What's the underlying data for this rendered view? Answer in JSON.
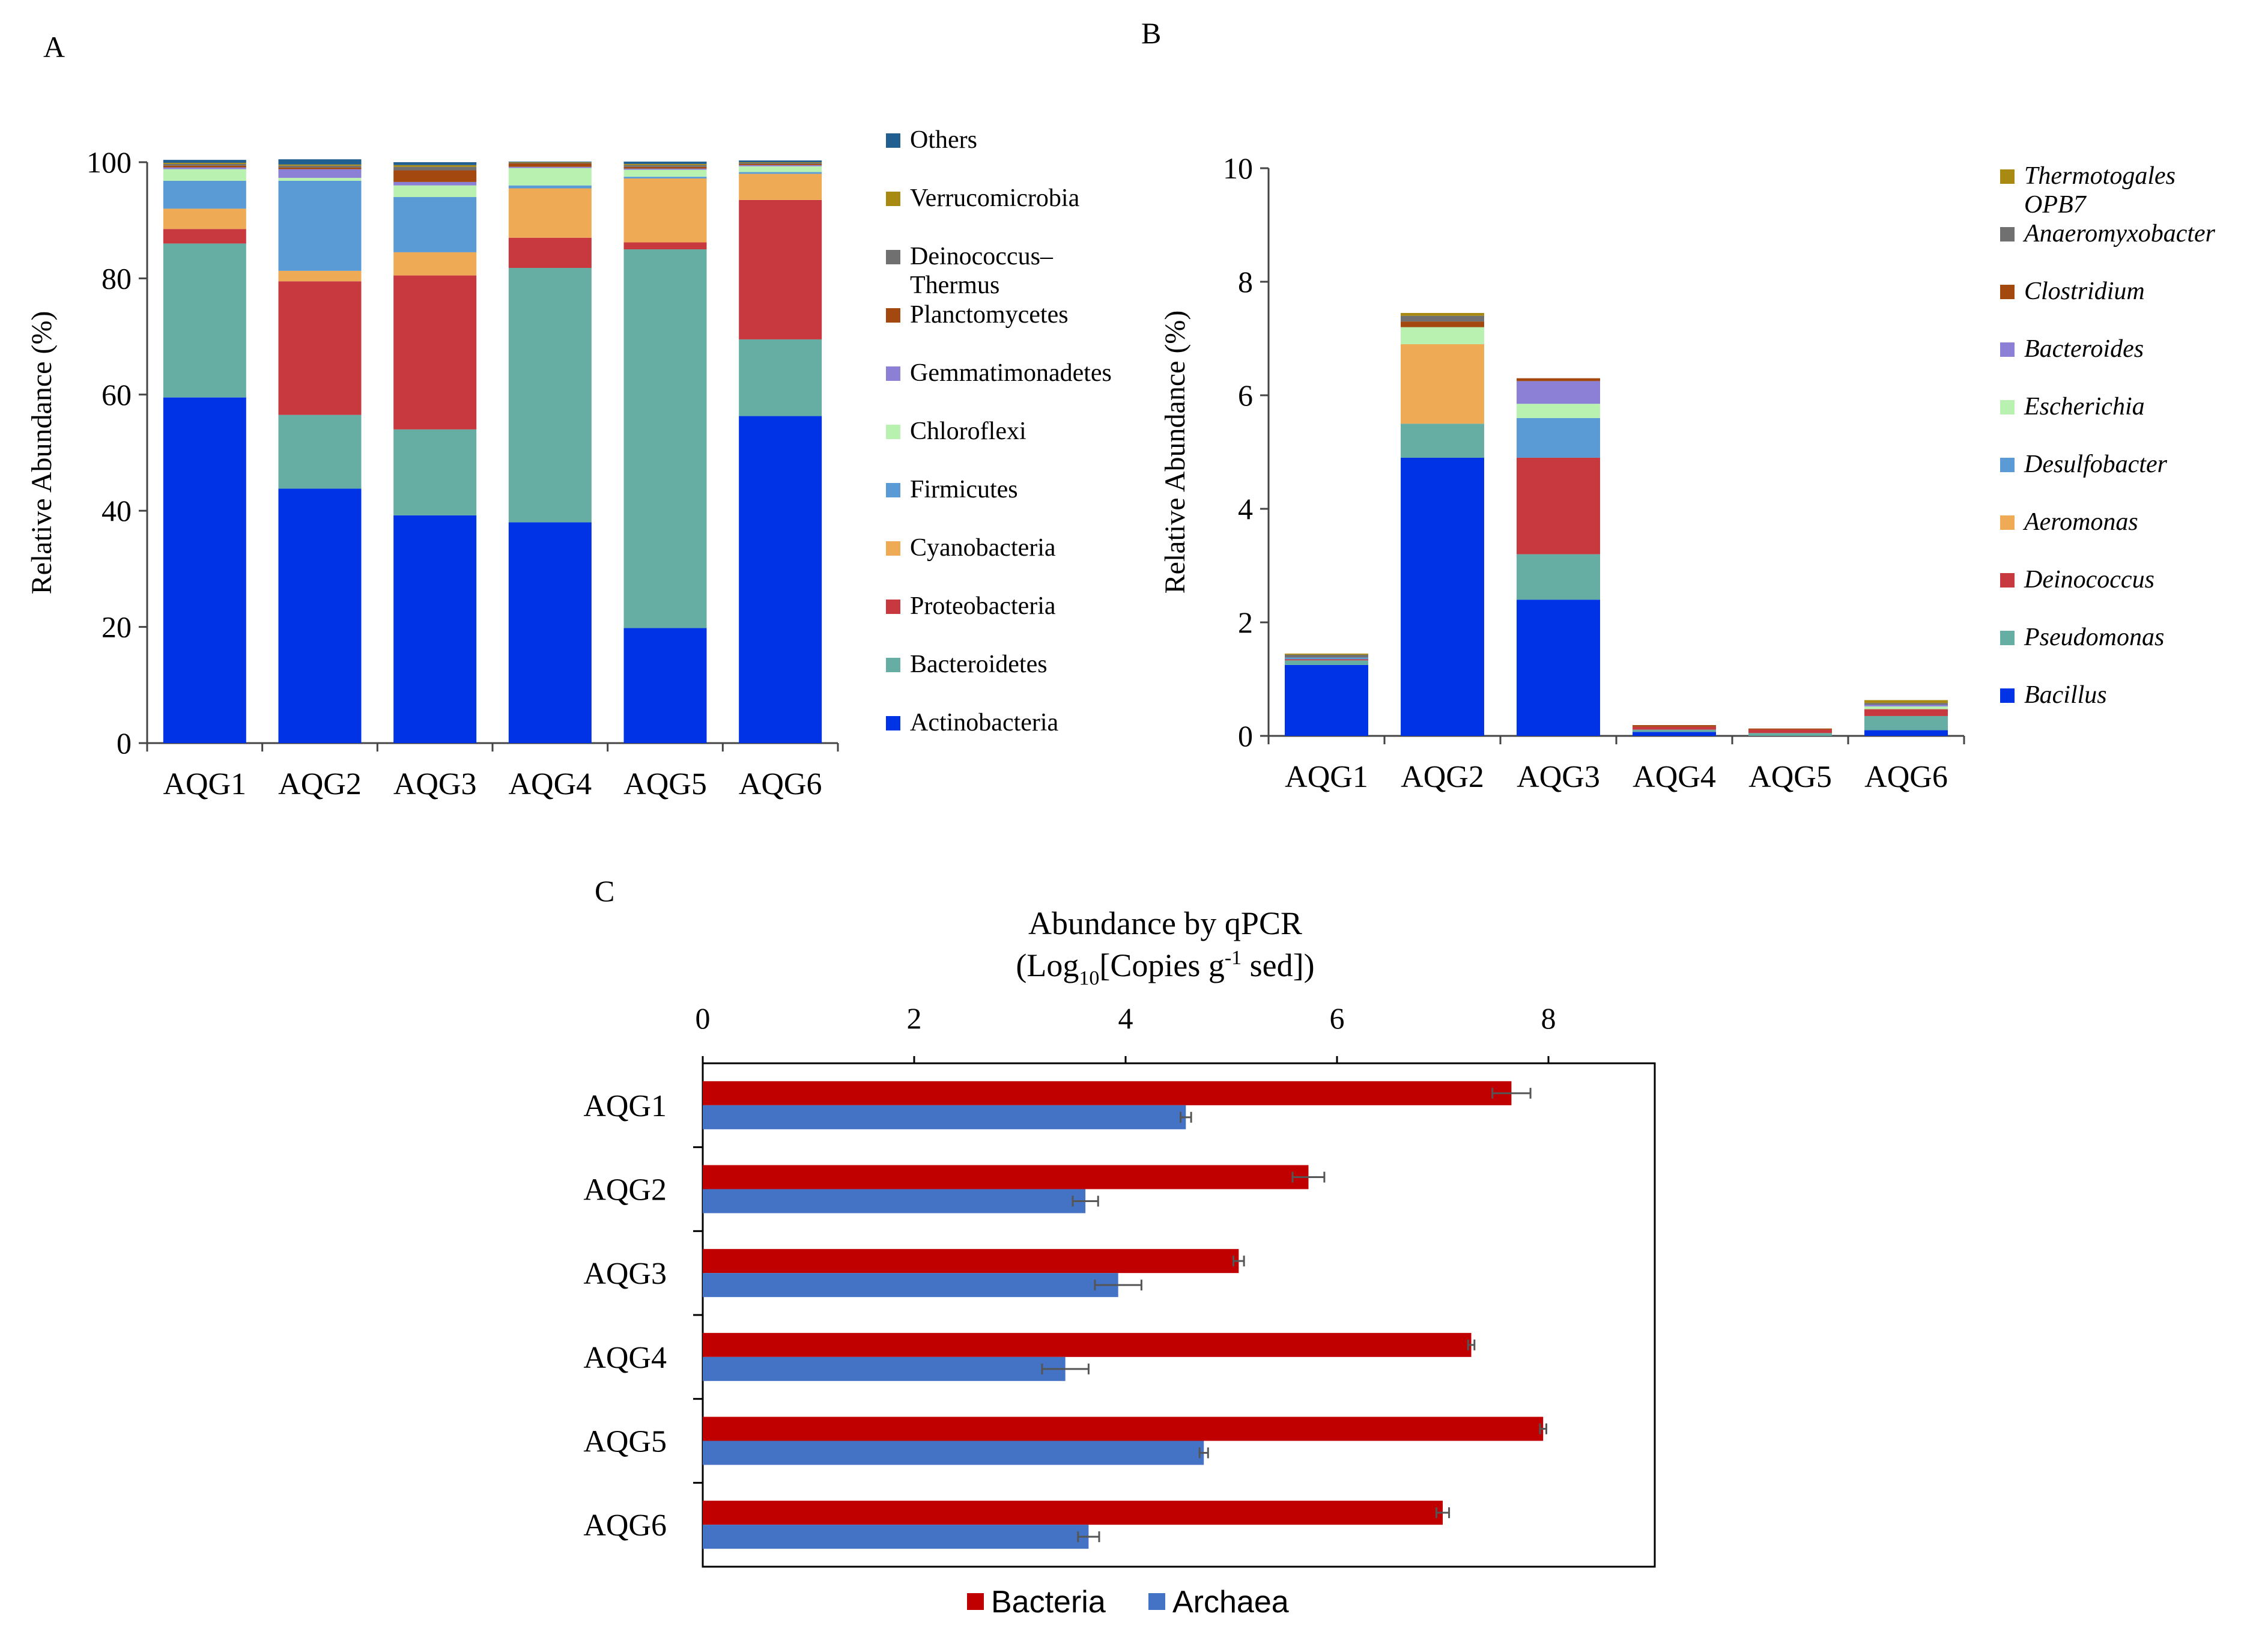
{
  "panels": {
    "A": "A",
    "B": "B",
    "C": "C"
  },
  "chart_data": [
    {
      "id": "A",
      "type": "bar",
      "stacked": true,
      "title": "",
      "ylabel": "Relative Abundance (%)",
      "xlabel": "",
      "ylim": [
        0,
        100
      ],
      "yticks": [
        0,
        20,
        40,
        60,
        80,
        100
      ],
      "categories": [
        "AQG1",
        "AQG2",
        "AQG3",
        "AQG4",
        "AQG5",
        "AQG6"
      ],
      "legend_position": "right",
      "series": [
        {
          "name": "Actinobacteria",
          "color": "#0033E6",
          "values": [
            59.5,
            43.8,
            39.2,
            38.0,
            19.8,
            56.3
          ]
        },
        {
          "name": "Bacteroidetes",
          "color": "#66ADA4",
          "values": [
            26.5,
            12.7,
            14.8,
            43.8,
            65.2,
            13.2
          ]
        },
        {
          "name": "Proteobacteria",
          "color": "#C8393F",
          "values": [
            2.5,
            23.0,
            26.5,
            5.2,
            1.2,
            24.0
          ]
        },
        {
          "name": "Cyanobacteria",
          "color": "#EEAA55",
          "values": [
            3.5,
            1.8,
            4.0,
            8.5,
            11.0,
            4.5
          ]
        },
        {
          "name": "Firmicutes",
          "color": "#5B9BD5",
          "values": [
            4.8,
            15.5,
            9.5,
            0.5,
            0.3,
            0.3
          ]
        },
        {
          "name": "Chloroflexi",
          "color": "#B9F2B0",
          "values": [
            2.0,
            0.5,
            2.0,
            3.0,
            1.2,
            1.0
          ]
        },
        {
          "name": "Gemmatimonadetes",
          "color": "#8B7FD6",
          "values": [
            0.3,
            1.5,
            0.6,
            0.2,
            0.2,
            0.2
          ]
        },
        {
          "name": "Planctomycetes",
          "color": "#A3480F",
          "values": [
            0.3,
            0.3,
            2.0,
            0.6,
            0.3,
            0.2
          ]
        },
        {
          "name": "Deinococcus–\nThermus",
          "color": "#707070",
          "values": [
            0.3,
            0.3,
            0.6,
            0.1,
            0.3,
            0.2
          ]
        },
        {
          "name": "Verrucomicrobia",
          "color": "#A88A12",
          "values": [
            0.2,
            0.2,
            0.3,
            0.1,
            0.2,
            0.1
          ]
        },
        {
          "name": "Others",
          "color": "#225F91",
          "values": [
            0.5,
            0.9,
            0.5,
            0.1,
            0.4,
            0.3
          ]
        }
      ]
    },
    {
      "id": "B",
      "type": "bar",
      "stacked": true,
      "title": "",
      "ylabel": "Relative Abundance (%)",
      "xlabel": "",
      "ylim": [
        0,
        10
      ],
      "yticks": [
        0,
        2,
        4,
        6,
        8,
        10
      ],
      "categories": [
        "AQG1",
        "AQG2",
        "AQG3",
        "AQG4",
        "AQG5",
        "AQG6"
      ],
      "legend_position": "right",
      "series": [
        {
          "name": "Bacillus",
          "color": "#0033E6",
          "values": [
            1.25,
            4.9,
            2.4,
            0.07,
            0.0,
            0.1
          ]
        },
        {
          "name": "Pseudomonas",
          "color": "#66ADA4",
          "values": [
            0.08,
            0.6,
            0.8,
            0.04,
            0.05,
            0.25
          ]
        },
        {
          "name": "Deinococcus",
          "color": "#C8393F",
          "values": [
            0.02,
            0.0,
            1.7,
            0.05,
            0.06,
            0.12
          ]
        },
        {
          "name": "Aeromonas",
          "color": "#EEAA55",
          "values": [
            0.0,
            1.4,
            0.0,
            0.0,
            0.0,
            0.0
          ]
        },
        {
          "name": "Desulfobacter",
          "color": "#5B9BD5",
          "values": [
            0.03,
            0.0,
            0.7,
            0.0,
            0.0,
            0.0
          ]
        },
        {
          "name": "Escherichia",
          "color": "#B9F2B0",
          "values": [
            0.0,
            0.3,
            0.25,
            0.0,
            0.0,
            0.05
          ]
        },
        {
          "name": "Bacteroides",
          "color": "#8B7FD6",
          "values": [
            0.0,
            0.0,
            0.4,
            0.0,
            0.0,
            0.03
          ]
        },
        {
          "name": "Clostridium",
          "color": "#A3480F",
          "values": [
            0.0,
            0.1,
            0.05,
            0.03,
            0.02,
            0.0
          ]
        },
        {
          "name": "Anaeromyxobacter",
          "color": "#707070",
          "values": [
            0.05,
            0.1,
            0.0,
            0.0,
            0.0,
            0.03
          ]
        },
        {
          "name": "Thermotogales\nOPB7",
          "color": "#A88A12",
          "values": [
            0.02,
            0.05,
            0.0,
            0.0,
            0.0,
            0.05
          ]
        }
      ]
    },
    {
      "id": "C",
      "type": "bar",
      "orientation": "horizontal",
      "title": "Abundance by qPCR",
      "xlabel": "(Log10[Copies g-1 sed])",
      "xlabel_parts": {
        "open": "(Log",
        "base": "10",
        "mid": "[Copies g",
        "exp": "-1",
        "close": " sed])"
      },
      "ylabel": "",
      "xlim": [
        0,
        9
      ],
      "xticks": [
        0,
        2,
        4,
        6,
        8
      ],
      "categories": [
        "AQG1",
        "AQG2",
        "AQG3",
        "AQG4",
        "AQG5",
        "AQG6"
      ],
      "legend_position": "bottom",
      "series": [
        {
          "name": "Bacteria",
          "color": "#C00000",
          "values": [
            7.65,
            5.73,
            5.07,
            7.27,
            7.95,
            7.0
          ],
          "errors": [
            0.18,
            0.15,
            0.05,
            0.03,
            0.03,
            0.06
          ]
        },
        {
          "name": "Archaea",
          "color": "#4472C4",
          "values": [
            4.57,
            3.62,
            3.93,
            3.43,
            4.74,
            3.65
          ],
          "errors": [
            0.05,
            0.12,
            0.22,
            0.22,
            0.04,
            0.1
          ]
        }
      ]
    }
  ]
}
